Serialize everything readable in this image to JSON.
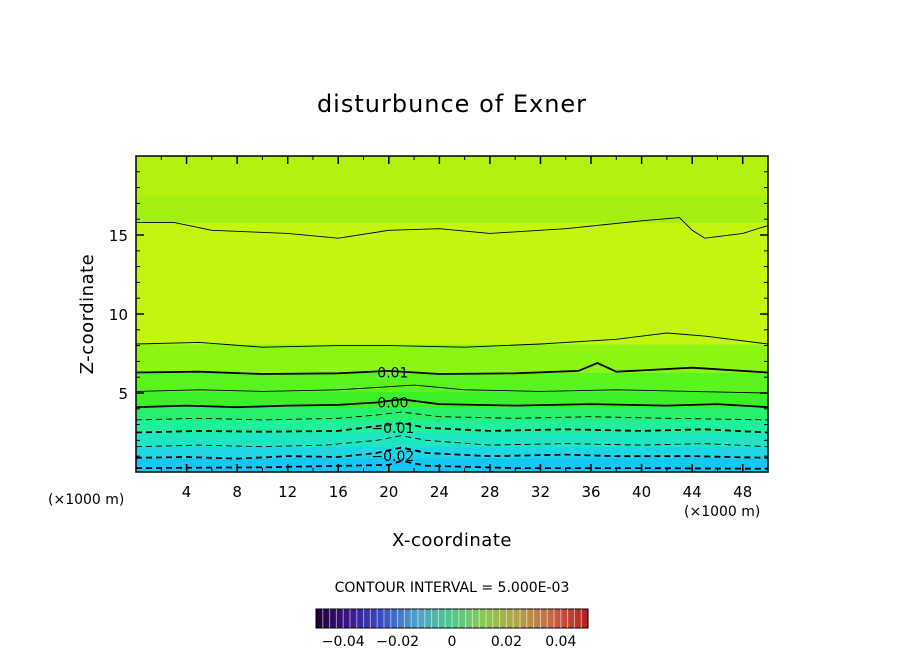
{
  "chart_data": {
    "type": "contour",
    "title": "disturbunce of Exner",
    "xlabel": "X-coordinate",
    "ylabel": "Z-coordinate",
    "x_unit": "(×1000 m)",
    "z_unit": "(×1000 m)",
    "xlim": [
      0,
      50
    ],
    "ylim": [
      0,
      20
    ],
    "x_ticks": [
      4,
      8,
      12,
      16,
      20,
      24,
      28,
      32,
      36,
      40,
      44,
      48
    ],
    "y_ticks": [
      5,
      10,
      15
    ],
    "contour_interval_text": "CONTOUR INTERVAL = 5.000E-03",
    "contour_labels": [
      {
        "text": "0.01",
        "x": 17,
        "z": 6.3
      },
      {
        "text": "0.00",
        "x": 17,
        "z": 4.4
      },
      {
        "text": "−0.01",
        "x": 17,
        "z": 2.8
      },
      {
        "text": "−0.02",
        "x": 17,
        "z": 1.0
      }
    ],
    "colorbar": {
      "range": [
        -0.05,
        0.05
      ],
      "tick_values": [
        -0.04,
        -0.02,
        0,
        0.02,
        0.04
      ],
      "tick_labels": [
        "−0.04",
        "−0.02",
        "0",
        "0.02",
        "0.04"
      ]
    },
    "contours": [
      {
        "value": -0.025,
        "style": "dashed-bold",
        "points": [
          [
            0,
            0.25
          ],
          [
            10,
            0.3
          ],
          [
            20,
            0.45
          ],
          [
            21,
            0.7
          ],
          [
            23,
            0.4
          ],
          [
            30,
            0.25
          ],
          [
            40,
            0.25
          ],
          [
            50,
            0.2
          ]
        ]
      },
      {
        "value": -0.02,
        "style": "dashed-bold",
        "points": [
          [
            0,
            0.9
          ],
          [
            4,
            0.95
          ],
          [
            8,
            0.85
          ],
          [
            12,
            1.0
          ],
          [
            16,
            0.95
          ],
          [
            19,
            1.2
          ],
          [
            21,
            1.55
          ],
          [
            23,
            1.2
          ],
          [
            28,
            1.0
          ],
          [
            34,
            1.1
          ],
          [
            38,
            1.0
          ],
          [
            44,
            1.0
          ],
          [
            50,
            0.9
          ]
        ]
      },
      {
        "value": -0.015,
        "style": "dashed",
        "points": [
          [
            0,
            1.6
          ],
          [
            5,
            1.7
          ],
          [
            10,
            1.6
          ],
          [
            15,
            1.7
          ],
          [
            19,
            2.0
          ],
          [
            21,
            2.3
          ],
          [
            23,
            2.0
          ],
          [
            28,
            1.7
          ],
          [
            34,
            1.8
          ],
          [
            40,
            1.7
          ],
          [
            45,
            1.8
          ],
          [
            50,
            1.6
          ]
        ]
      },
      {
        "value": -0.01,
        "style": "dashed-bold",
        "points": [
          [
            0,
            2.5
          ],
          [
            5,
            2.6
          ],
          [
            10,
            2.55
          ],
          [
            16,
            2.6
          ],
          [
            19,
            2.9
          ],
          [
            21,
            3.1
          ],
          [
            23,
            2.8
          ],
          [
            28,
            2.6
          ],
          [
            34,
            2.7
          ],
          [
            40,
            2.6
          ],
          [
            45,
            2.7
          ],
          [
            50,
            2.5
          ]
        ]
      },
      {
        "value": -0.005,
        "style": "dashed",
        "points": [
          [
            0,
            3.3
          ],
          [
            5,
            3.4
          ],
          [
            10,
            3.3
          ],
          [
            16,
            3.4
          ],
          [
            19,
            3.6
          ],
          [
            21,
            3.8
          ],
          [
            24,
            3.5
          ],
          [
            30,
            3.4
          ],
          [
            36,
            3.5
          ],
          [
            42,
            3.4
          ],
          [
            50,
            3.3
          ]
        ]
      },
      {
        "value": 0.0,
        "style": "solid-bold",
        "points": [
          [
            0,
            4.1
          ],
          [
            4,
            4.2
          ],
          [
            8,
            4.1
          ],
          [
            12,
            4.2
          ],
          [
            16,
            4.25
          ],
          [
            19,
            4.4
          ],
          [
            21,
            4.6
          ],
          [
            24,
            4.3
          ],
          [
            30,
            4.2
          ],
          [
            36,
            4.3
          ],
          [
            42,
            4.2
          ],
          [
            46,
            4.3
          ],
          [
            50,
            4.1
          ]
        ]
      },
      {
        "value": 0.005,
        "style": "solid",
        "points": [
          [
            0,
            5.1
          ],
          [
            5,
            5.2
          ],
          [
            10,
            5.1
          ],
          [
            16,
            5.2
          ],
          [
            20,
            5.4
          ],
          [
            22,
            5.5
          ],
          [
            26,
            5.2
          ],
          [
            32,
            5.1
          ],
          [
            38,
            5.2
          ],
          [
            44,
            5.1
          ],
          [
            50,
            5.0
          ]
        ]
      },
      {
        "value": 0.01,
        "style": "solid-bold",
        "points": [
          [
            0,
            6.3
          ],
          [
            5,
            6.35
          ],
          [
            10,
            6.2
          ],
          [
            16,
            6.25
          ],
          [
            20,
            6.4
          ],
          [
            24,
            6.2
          ],
          [
            30,
            6.25
          ],
          [
            35,
            6.4
          ],
          [
            36.5,
            6.9
          ],
          [
            38,
            6.35
          ],
          [
            44,
            6.6
          ],
          [
            50,
            6.3
          ]
        ]
      },
      {
        "value": 0.015,
        "style": "solid",
        "points": [
          [
            0,
            8.1
          ],
          [
            5,
            8.2
          ],
          [
            10,
            7.9
          ],
          [
            16,
            8.0
          ],
          [
            20,
            8.0
          ],
          [
            26,
            7.9
          ],
          [
            32,
            8.1
          ],
          [
            38,
            8.4
          ],
          [
            42,
            8.8
          ],
          [
            45,
            8.6
          ],
          [
            50,
            8.1
          ]
        ]
      },
      {
        "value": 0.015,
        "style": "solid",
        "points": [
          [
            0,
            15.8
          ],
          [
            3,
            15.8
          ],
          [
            6,
            15.3
          ],
          [
            12,
            15.1
          ],
          [
            16,
            14.8
          ],
          [
            20,
            15.3
          ],
          [
            24,
            15.4
          ],
          [
            28,
            15.1
          ],
          [
            34,
            15.4
          ],
          [
            40,
            15.9
          ],
          [
            43,
            16.1
          ],
          [
            44,
            15.3
          ],
          [
            45,
            14.8
          ],
          [
            48,
            15.1
          ],
          [
            50,
            15.6
          ]
        ]
      }
    ],
    "fill_bands": [
      {
        "z": [
          0,
          0.9
        ],
        "color": "#14c8f5"
      },
      {
        "z": [
          0.9,
          1.6
        ],
        "color": "#1ed7e6"
      },
      {
        "z": [
          1.6,
          2.5
        ],
        "color": "#1ee6c3"
      },
      {
        "z": [
          2.5,
          3.3
        ],
        "color": "#1ef09b"
      },
      {
        "z": [
          3.3,
          4.1
        ],
        "color": "#28f06e"
      },
      {
        "z": [
          4.1,
          5.1
        ],
        "color": "#3cf028"
      },
      {
        "z": [
          5.1,
          6.3
        ],
        "color": "#5af51e"
      },
      {
        "z": [
          6.3,
          8.1
        ],
        "color": "#8cf514"
      },
      {
        "z": [
          8.1,
          15.8
        ],
        "color": "#c3f50f"
      },
      {
        "z": [
          15.8,
          17.5
        ],
        "color": "#a5f014"
      },
      {
        "z": [
          17.5,
          20
        ],
        "color": "#b4f010"
      }
    ]
  }
}
